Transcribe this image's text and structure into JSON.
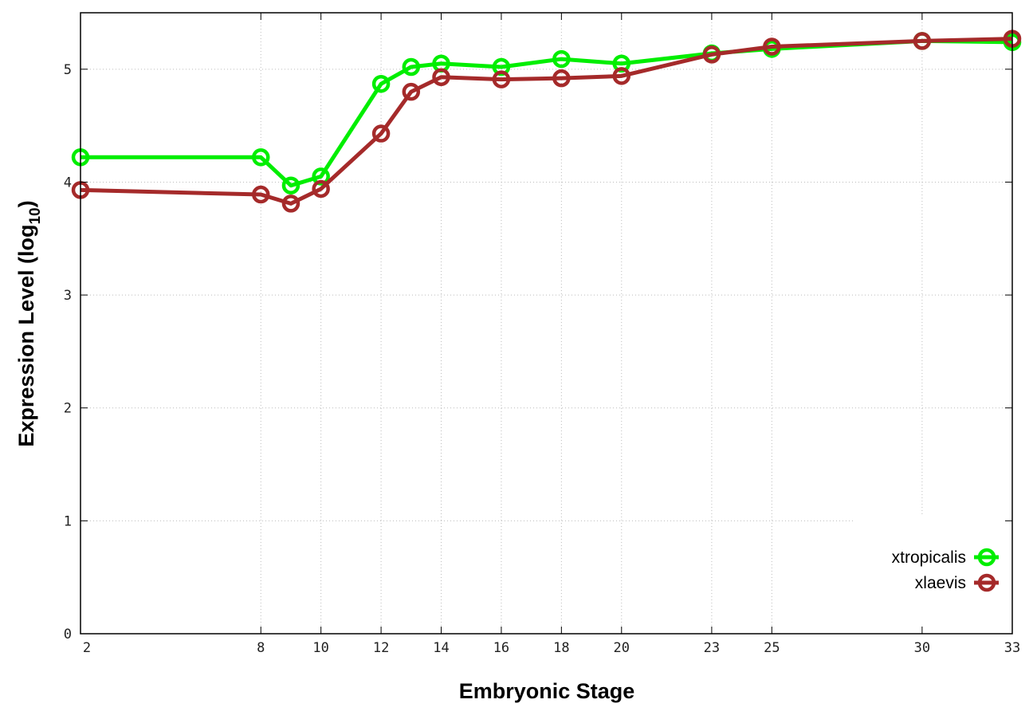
{
  "chart_data": {
    "type": "line",
    "title": "",
    "xlabel": "Embryonic Stage",
    "ylabel_main": "Expression Level (log",
    "ylabel_sub": "10",
    "ylabel_close": ")",
    "xlim": [
      2,
      33
    ],
    "ylim": [
      0,
      5.5
    ],
    "xticks": [
      2,
      8,
      10,
      12,
      14,
      16,
      18,
      20,
      23,
      25,
      30,
      33
    ],
    "yticks": [
      0,
      1,
      2,
      3,
      4,
      5
    ],
    "grid": true,
    "legend_position": "bottom-right",
    "x": [
      2,
      8,
      9,
      10,
      12,
      13,
      14,
      16,
      18,
      20,
      23,
      25,
      30,
      33
    ],
    "series": [
      {
        "name": "xtropicalis",
        "color": "#00ee00",
        "values": [
          4.22,
          4.22,
          3.97,
          4.05,
          4.87,
          5.02,
          5.05,
          5.02,
          5.09,
          5.05,
          5.14,
          5.18,
          5.25,
          5.24
        ]
      },
      {
        "name": "xlaevis",
        "color": "#a52a2a",
        "values": [
          3.93,
          3.89,
          3.81,
          3.94,
          4.43,
          4.8,
          4.93,
          4.91,
          4.92,
          4.94,
          5.13,
          5.2,
          5.25,
          5.27
        ]
      }
    ]
  }
}
